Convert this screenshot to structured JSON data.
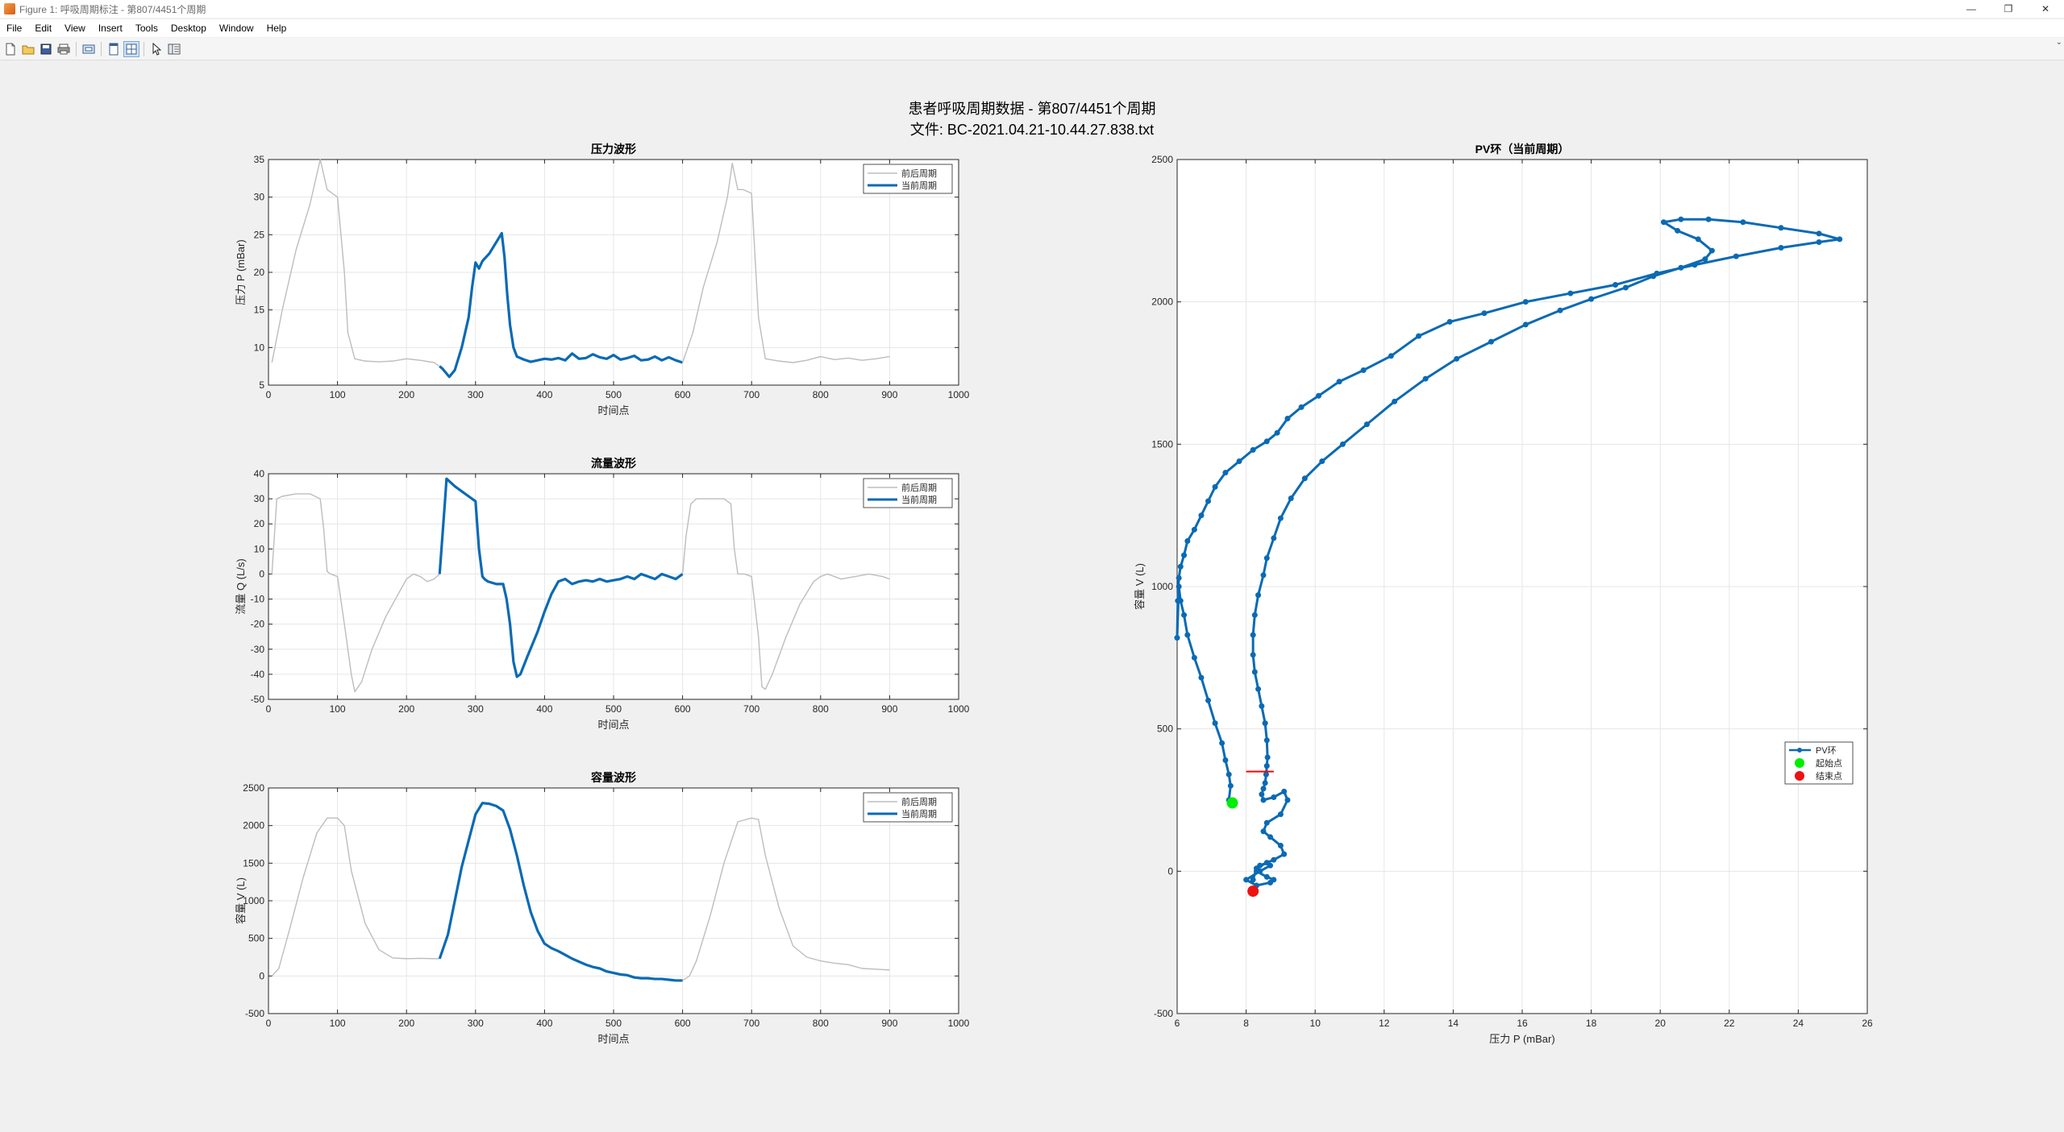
{
  "window": {
    "title": "Figure 1: 呼吸周期标注 - 第807/4451个周期",
    "controls": [
      "—",
      "❐",
      "✕"
    ]
  },
  "menu": [
    "File",
    "Edit",
    "View",
    "Insert",
    "Tools",
    "Desktop",
    "Window",
    "Help"
  ],
  "toolbar": {
    "buttons": [
      "new-figure-icon",
      "open-file-icon",
      "save-icon",
      "print-icon",
      "print-preview-icon",
      "dock-icon",
      "tile-icon",
      "pointer-icon",
      "property-editor-icon"
    ]
  },
  "figure": {
    "suptitle_line1": "患者呼吸周期数据 - 第807/4451个周期",
    "suptitle_line2": "文件: BC-2021.04.21-10.44.27.838.txt"
  },
  "colors": {
    "current": "#0a6ab4",
    "context": "#bdbdbd",
    "start": "#00ee00",
    "end": "#ee1111",
    "marker": "#ff0000"
  },
  "chart_data": [
    {
      "type": "line",
      "title": "压力波形",
      "xlabel": "时间点",
      "ylabel": "压力 P (mBar)",
      "xlim": [
        0,
        1000
      ],
      "ylim": [
        5,
        35
      ],
      "xticks": [
        0,
        100,
        200,
        300,
        400,
        500,
        600,
        700,
        800,
        900,
        1000
      ],
      "yticks": [
        5,
        10,
        15,
        20,
        25,
        30,
        35
      ],
      "grid": true,
      "legend_position": "top-right",
      "series": [
        {
          "name": "前后周期",
          "x": [
            5,
            20,
            40,
            60,
            75,
            85,
            100,
            110,
            115,
            125,
            140,
            160,
            180,
            200,
            220,
            240,
            248
          ],
          "y": [
            8,
            15,
            23,
            29,
            35,
            31,
            30,
            20,
            12,
            8.5,
            8.2,
            8.1,
            8.2,
            8.5,
            8.3,
            8.0,
            7.5
          ]
        },
        {
          "name": "当前周期",
          "x": [
            248,
            252,
            262,
            270,
            280,
            290,
            295,
            300,
            305,
            310,
            320,
            330,
            338,
            342,
            346,
            350,
            355,
            360,
            370,
            380,
            390,
            400,
            410,
            420,
            430,
            440,
            450,
            460,
            470,
            480,
            490,
            500,
            510,
            520,
            530,
            540,
            550,
            560,
            570,
            580,
            590,
            600
          ],
          "y": [
            7.5,
            7.2,
            6.1,
            7.0,
            10,
            14,
            18,
            21.3,
            20.5,
            21.5,
            22.5,
            24,
            25.2,
            22,
            17,
            13,
            10,
            8.8,
            8.4,
            8.1,
            8.3,
            8.5,
            8.4,
            8.6,
            8.3,
            9.2,
            8.5,
            8.6,
            9.1,
            8.7,
            8.5,
            9.0,
            8.4,
            8.6,
            8.9,
            8.3,
            8.4,
            8.8,
            8.3,
            8.7,
            8.3,
            8.0
          ]
        },
        {
          "name": "前后周期",
          "x": [
            600,
            615,
            630,
            650,
            665,
            672,
            680,
            688,
            700,
            705,
            710,
            720,
            740,
            760,
            780,
            800,
            820,
            840,
            860,
            880,
            900
          ],
          "y": [
            8.0,
            12,
            18,
            24,
            30,
            34.5,
            31,
            31,
            30.5,
            22,
            14,
            8.5,
            8.2,
            8.0,
            8.3,
            8.8,
            8.4,
            8.6,
            8.3,
            8.5,
            8.8
          ]
        }
      ]
    },
    {
      "type": "line",
      "title": "流量波形",
      "xlabel": "时间点",
      "ylabel": "流量 Q (L/s)",
      "xlim": [
        0,
        1000
      ],
      "ylim": [
        -50,
        40
      ],
      "xticks": [
        0,
        100,
        200,
        300,
        400,
        500,
        600,
        700,
        800,
        900,
        1000
      ],
      "yticks": [
        -50,
        -40,
        -30,
        -20,
        -10,
        0,
        10,
        20,
        30,
        40
      ],
      "grid": true,
      "legend_position": "top-right",
      "series": [
        {
          "name": "前后周期",
          "x": [
            5,
            12,
            20,
            40,
            60,
            75,
            80,
            85,
            90,
            100,
            110,
            120,
            125,
            135,
            150,
            170,
            190,
            200,
            210,
            220,
            230,
            240,
            248
          ],
          "y": [
            0,
            30,
            31,
            32,
            32,
            30,
            18,
            1,
            0,
            -1,
            -20,
            -40,
            -47,
            -43,
            -30,
            -17,
            -7,
            -2,
            0,
            -1,
            -3,
            -2,
            0
          ]
        },
        {
          "name": "当前周期",
          "x": [
            248,
            252,
            256,
            258,
            262,
            270,
            280,
            290,
            300,
            305,
            310,
            313,
            318,
            330,
            340,
            345,
            350,
            355,
            360,
            365,
            375,
            390,
            400,
            410,
            420,
            430,
            440,
            450,
            460,
            470,
            480,
            490,
            500,
            510,
            520,
            530,
            540,
            550,
            560,
            570,
            580,
            590,
            600
          ],
          "y": [
            0,
            15,
            30,
            38,
            37,
            35,
            33,
            31,
            29,
            10,
            -1,
            -2,
            -3,
            -4,
            -4,
            -10,
            -20,
            -35,
            -41,
            -40,
            -33,
            -23,
            -15,
            -8,
            -3,
            -2,
            -4,
            -3,
            -2.5,
            -3,
            -2,
            -3,
            -2.5,
            -2,
            -1,
            -2,
            0,
            -1,
            -2,
            0,
            -1,
            -2,
            0
          ]
        },
        {
          "name": "前后周期",
          "x": [
            600,
            605,
            612,
            620,
            640,
            660,
            670,
            675,
            680,
            690,
            700,
            710,
            715,
            720,
            730,
            750,
            770,
            790,
            800,
            810,
            830,
            850,
            870,
            890,
            900
          ],
          "y": [
            0,
            15,
            28,
            30,
            30,
            30,
            28,
            10,
            0,
            0,
            -1,
            -25,
            -45,
            -46,
            -40,
            -25,
            -12,
            -3,
            -1,
            0,
            -2,
            -1,
            0,
            -1,
            -2
          ]
        }
      ]
    },
    {
      "type": "line",
      "title": "容量波形",
      "xlabel": "时间点",
      "ylabel": "容量 V (L)",
      "xlim": [
        0,
        1000
      ],
      "ylim": [
        -500,
        2500
      ],
      "xticks": [
        0,
        100,
        200,
        300,
        400,
        500,
        600,
        700,
        800,
        900,
        1000
      ],
      "yticks": [
        -500,
        0,
        500,
        1000,
        1500,
        2000,
        2500
      ],
      "grid": true,
      "legend_position": "top-right",
      "series": [
        {
          "name": "前后周期",
          "x": [
            5,
            15,
            30,
            50,
            70,
            85,
            100,
            110,
            120,
            140,
            160,
            180,
            200,
            220,
            240,
            248
          ],
          "y": [
            0,
            100,
            600,
            1300,
            1900,
            2100,
            2100,
            2000,
            1400,
            700,
            350,
            240,
            230,
            235,
            230,
            230
          ]
        },
        {
          "name": "当前周期",
          "x": [
            248,
            260,
            270,
            280,
            290,
            300,
            310,
            320,
            330,
            340,
            350,
            360,
            370,
            380,
            390,
            400,
            410,
            420,
            430,
            440,
            450,
            460,
            470,
            480,
            490,
            500,
            510,
            520,
            530,
            540,
            550,
            560,
            570,
            580,
            590,
            600
          ],
          "y": [
            230,
            550,
            1000,
            1450,
            1800,
            2150,
            2300,
            2290,
            2260,
            2200,
            1950,
            1600,
            1200,
            850,
            600,
            430,
            370,
            330,
            280,
            230,
            190,
            150,
            120,
            100,
            60,
            40,
            20,
            10,
            -20,
            -30,
            -30,
            -40,
            -40,
            -50,
            -60,
            -60
          ]
        },
        {
          "name": "前后周期",
          "x": [
            600,
            610,
            620,
            640,
            660,
            680,
            700,
            710,
            720,
            740,
            760,
            780,
            800,
            820,
            840,
            860,
            880,
            900
          ],
          "y": [
            -60,
            0,
            200,
            800,
            1500,
            2050,
            2100,
            2080,
            1600,
            900,
            400,
            250,
            200,
            170,
            150,
            100,
            90,
            80
          ]
        }
      ]
    },
    {
      "type": "scatter",
      "title": "PV环（当前周期）",
      "xlabel": "压力 P (mBar)",
      "ylabel": "容量 V (L)",
      "xlim": [
        6,
        26
      ],
      "ylim": [
        -500,
        2500
      ],
      "xticks": [
        6,
        8,
        10,
        12,
        14,
        16,
        18,
        20,
        22,
        24,
        26
      ],
      "yticks": [
        -500,
        0,
        500,
        1000,
        1500,
        2000,
        2500
      ],
      "grid": true,
      "legend_position": "lower-right",
      "legend": [
        "PV环",
        "起始点",
        "结束点"
      ],
      "series": [
        {
          "name": "PV环",
          "x": [
            7.5,
            7.55,
            7.5,
            7.4,
            7.3,
            7.1,
            6.9,
            6.7,
            6.5,
            6.3,
            6.2,
            6.1,
            6.05,
            6.0,
            6.02,
            6.05,
            6.1,
            6.2,
            6.3,
            6.5,
            6.7,
            6.9,
            7.1,
            7.4,
            7.8,
            8.2,
            8.6,
            8.9,
            9.2,
            9.6,
            10.1,
            10.7,
            11.4,
            12.2,
            13.0,
            13.9,
            14.9,
            16.1,
            17.4,
            18.7,
            19.9,
            21.0,
            22.2,
            23.5,
            24.6,
            25.2,
            24.6,
            23.5,
            22.4,
            21.4,
            20.6,
            20.1,
            20.5,
            21.1,
            21.5,
            21.3,
            20.6,
            19.8,
            19.0,
            18.0,
            17.1,
            16.1,
            15.1,
            14.1,
            13.2,
            12.3,
            11.5,
            10.8,
            10.2,
            9.7,
            9.3,
            9.0,
            8.8,
            8.6,
            8.5,
            8.35,
            8.25,
            8.2,
            8.2,
            8.25,
            8.35,
            8.45,
            8.55,
            8.6,
            8.62,
            8.6,
            8.58,
            8.55,
            8.5,
            8.45,
            8.5,
            8.8,
            9.1,
            9.2,
            9.0,
            8.6,
            8.5,
            8.7,
            9.0,
            9.1,
            8.8,
            8.4,
            8.3,
            8.6,
            8.8,
            8.7,
            8.3,
            8.0,
            8.4,
            8.7,
            8.6,
            8.3,
            8.2
          ],
          "y": [
            250,
            300,
            340,
            390,
            450,
            520,
            600,
            680,
            750,
            830,
            900,
            950,
            1000,
            820,
            950,
            1030,
            1070,
            1110,
            1160,
            1200,
            1250,
            1300,
            1350,
            1400,
            1440,
            1480,
            1510,
            1540,
            1590,
            1630,
            1670,
            1720,
            1760,
            1810,
            1880,
            1930,
            1960,
            2000,
            2030,
            2060,
            2100,
            2130,
            2160,
            2190,
            2210,
            2220,
            2240,
            2260,
            2280,
            2290,
            2290,
            2280,
            2250,
            2220,
            2180,
            2150,
            2120,
            2090,
            2050,
            2010,
            1970,
            1920,
            1860,
            1800,
            1730,
            1650,
            1570,
            1500,
            1440,
            1380,
            1310,
            1240,
            1170,
            1100,
            1040,
            970,
            900,
            830,
            760,
            700,
            640,
            580,
            520,
            460,
            400,
            370,
            340,
            310,
            290,
            270,
            250,
            260,
            280,
            250,
            200,
            170,
            140,
            120,
            90,
            60,
            40,
            20,
            0,
            -20,
            -30,
            -40,
            -50,
            -30,
            0,
            20,
            30,
            10,
            -30
          ]
        },
        {
          "name": "起始点",
          "x": [
            7.6
          ],
          "y": [
            240
          ]
        },
        {
          "name": "结束点",
          "x": [
            8.2
          ],
          "y": [
            -70
          ]
        }
      ],
      "annotation": {
        "type": "hline-marker",
        "x": [
          8.0,
          8.8
        ],
        "y": 350
      }
    }
  ]
}
